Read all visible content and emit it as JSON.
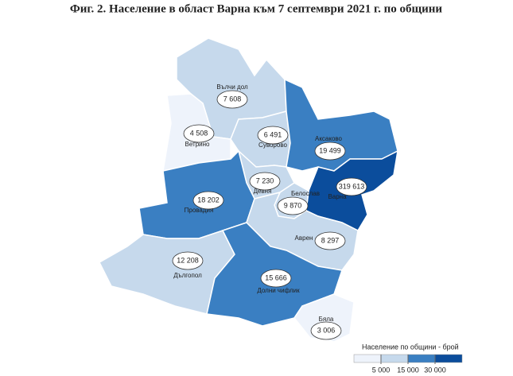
{
  "title": "Фиг. 2. Население в област Варна към 7 септември 2021 г. по общини",
  "regions": [
    {
      "name": "Вълчи дол",
      "value": 7608,
      "label": "7 608"
    },
    {
      "name": "Ветрино",
      "value": 4508,
      "label": "4 508"
    },
    {
      "name": "Суворово",
      "value": 6491,
      "label": "6 491"
    },
    {
      "name": "Аксаково",
      "value": 19499,
      "label": "19 499"
    },
    {
      "name": "Варна",
      "value": 319613,
      "label": "319 613"
    },
    {
      "name": "Девня",
      "value": 7230,
      "label": "7 230"
    },
    {
      "name": "Белослав",
      "value": 9870,
      "label": "9 870"
    },
    {
      "name": "Провадия",
      "value": 18202,
      "label": "18 202"
    },
    {
      "name": "Аврен",
      "value": 8297,
      "label": "8 297"
    },
    {
      "name": "Дългопол",
      "value": 12208,
      "label": "12 208"
    },
    {
      "name": "Долни чифлик",
      "value": 15666,
      "label": "15 666"
    },
    {
      "name": "Бяла",
      "value": 3006,
      "label": "3 006"
    }
  ],
  "legend": {
    "title": "Население по общини - брой",
    "breaks": [
      {
        "value": 5000,
        "label": "5 000"
      },
      {
        "value": 15000,
        "label": "15 000"
      },
      {
        "value": 30000,
        "label": "30 000"
      }
    ],
    "colors": [
      "#eef3fb",
      "#c6d9ec",
      "#3a7fc2",
      "#0b4d9c"
    ]
  }
}
